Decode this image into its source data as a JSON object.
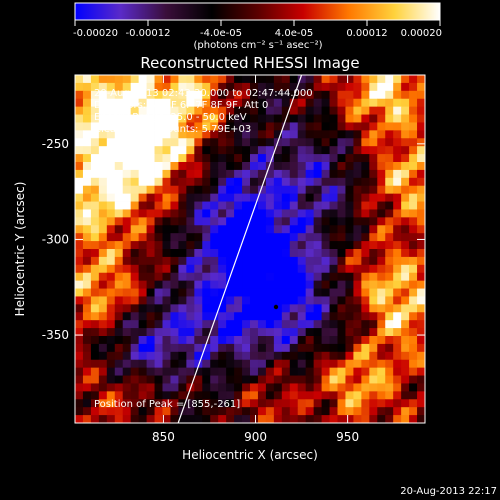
{
  "colorbar": {
    "ticks": [
      {
        "label": "-0.00020",
        "value": -0.0002
      },
      {
        "label": "-0.00012",
        "value": -0.00012
      },
      {
        "label": "-4.0e-05",
        "value": -4e-05
      },
      {
        "label": "4.0e-05",
        "value": 4e-05
      },
      {
        "label": "0.00012",
        "value": 0.00012
      },
      {
        "label": "0.00020",
        "value": 0.0002
      }
    ],
    "range": [
      -0.0002,
      0.0002
    ],
    "units": "(photons cm⁻² s⁻¹ asec⁻²)",
    "colors": [
      "#0000ff",
      "#5a2ac8",
      "#3a0e3a",
      "#000000",
      "#5a0000",
      "#c80000",
      "#ff7800",
      "#ffd23c",
      "#ffffff"
    ]
  },
  "chart_data": {
    "type": "heatmap",
    "title": "Reconstructed RHESSI Image",
    "xlabel": "Heliocentric X (arcsec)",
    "ylabel": "Heliocentric Y (arcsec)",
    "xlim": [
      802,
      992
    ],
    "ylim": [
      -396,
      -214
    ],
    "x_ticks": [
      {
        "label": "850",
        "value": 850
      },
      {
        "label": "900",
        "value": 900
      },
      {
        "label": "950",
        "value": 950
      }
    ],
    "y_ticks": [
      {
        "label": "-250",
        "value": -250
      },
      {
        "label": "-300",
        "value": -300
      },
      {
        "label": "-350",
        "value": -350
      }
    ],
    "annotations": [
      "20-Aug-2013 02:43:20.000 to 02:47:44.000",
      "Detectors: 3F 5F 6F 7F 8F 9F, Att 0",
      "Energy Range: 25.0 - 50.0 keV",
      "Clean    Total counts: 5.79E+03"
    ],
    "peak_label": "Position of Peak = [855,-261]",
    "peak": [
      855,
      -261
    ],
    "limb_line": [
      [
        858,
        -396
      ],
      [
        925,
        -214
      ]
    ]
  },
  "footer": {
    "timestamp": "20-Aug-2013 22:17"
  }
}
